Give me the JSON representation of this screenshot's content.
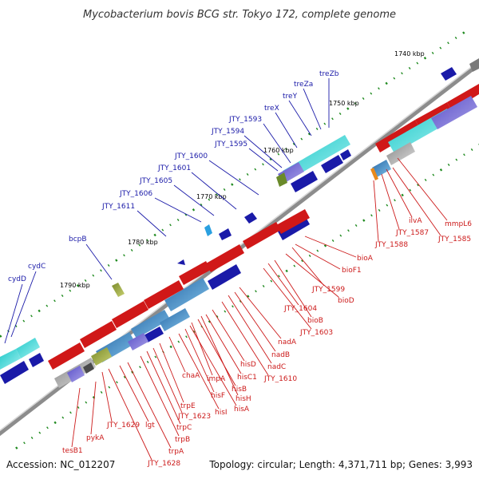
{
  "title": "Mycobacterium bovis BCG str. Tokyo 172, complete genome",
  "footer": {
    "accession": "Accession: NC_012207",
    "stats": "Topology: circular; Length: 4,371,711 bp; Genes: 3,993"
  },
  "ticks": [
    "1740 kbp",
    "1750 kbp",
    "1760 kbp",
    "1770 kbp",
    "1780 kbp",
    "1790 kbp"
  ],
  "forward_genes": [
    "treZb",
    "treZa",
    "treY",
    "treX",
    "JTY_1593",
    "JTY_1594",
    "JTY_1595",
    "JTY_1600",
    "JTY_1601",
    "JTY_1605",
    "JTY_1606",
    "JTY_1611",
    "bcpB",
    "cydC",
    "cydD"
  ],
  "reverse_genes": [
    "mmpL6",
    "JTY_1585",
    "ilvA",
    "JTY_1587",
    "JTY_1588",
    "bioA",
    "bioF1",
    "JTY_1599",
    "bioD",
    "JTY_1604",
    "bioB",
    "JTY_1603",
    "nadA",
    "nadB",
    "nadC",
    "JTY_1610",
    "hisD",
    "hisC1",
    "impA",
    "hisB",
    "hisH",
    "hisF",
    "hisA",
    "chaA",
    "hisI",
    "trpE",
    "JTY_1623",
    "trpC",
    "trpB",
    "lgt",
    "trpA",
    "JTY_1629",
    "JTY_1628",
    "pykA",
    "tesB1"
  ],
  "colors": {
    "forward_gene": "#1a1aa8",
    "reverse_gene": "#cc1a1a",
    "backbone": "#888888",
    "tick": "#1f8a1f"
  }
}
